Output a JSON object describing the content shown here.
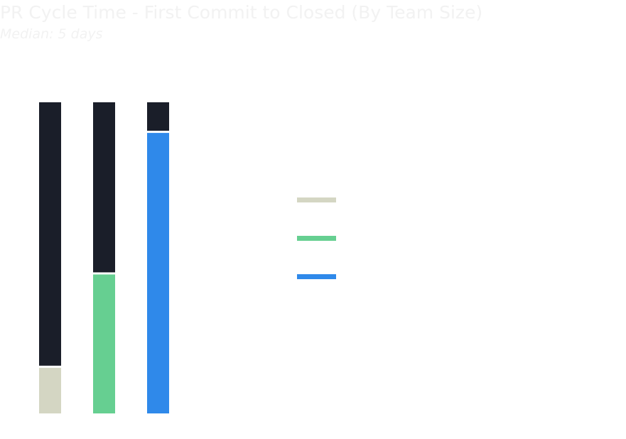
{
  "chart_data": {
    "type": "bar",
    "stacked": true,
    "title": "PR Cycle Time - First Commit to Closed (By Team Size)",
    "subtitle": "Median: 5 days",
    "categories": [
      "",
      "",
      ""
    ],
    "series": [
      {
        "name": "",
        "segments": [
          {
            "value": 15,
            "color": "#d4d6c3"
          },
          {
            "value": 85,
            "color": "#1a1e29"
          }
        ]
      },
      {
        "name": "",
        "segments": [
          {
            "value": 45,
            "color": "#66cf91"
          },
          {
            "value": 55,
            "color": "#1a1e29"
          }
        ]
      },
      {
        "name": "",
        "segments": [
          {
            "value": 90.5,
            "color": "#2f89ea"
          },
          {
            "value": 9.5,
            "color": "#1a1e29"
          }
        ]
      }
    ],
    "ylim": [
      0,
      100
    ],
    "grid": false,
    "legend_position": "right",
    "legend": [
      {
        "label": "",
        "color": "#d4d6c3"
      },
      {
        "label": "",
        "color": "#66cf91"
      },
      {
        "label": "",
        "color": "#2f89ea"
      }
    ]
  }
}
